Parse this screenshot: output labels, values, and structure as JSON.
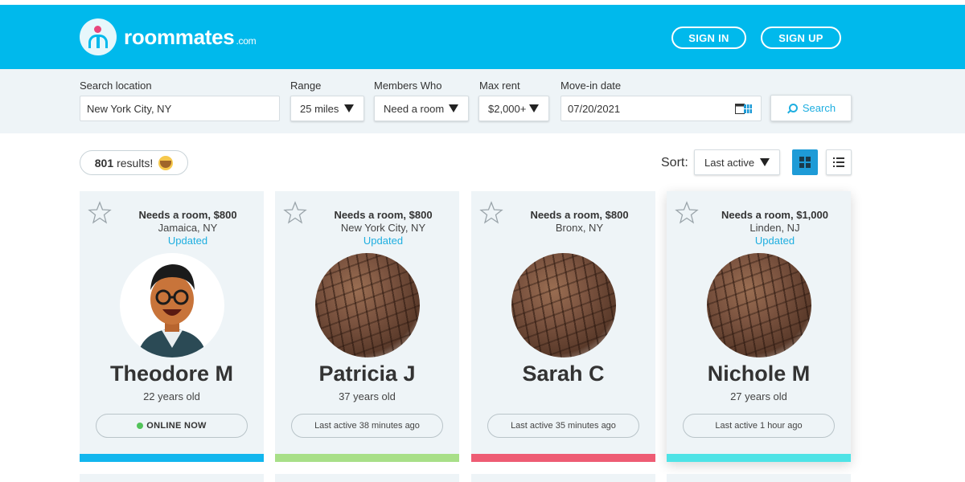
{
  "header": {
    "brand": "roommates",
    "brand_suffix": ".com",
    "sign_in": "SIGN IN",
    "sign_up": "SIGN UP"
  },
  "filters": {
    "location": {
      "label": "Search location",
      "value": "New York City, NY"
    },
    "range": {
      "label": "Range",
      "value": "25 miles"
    },
    "members": {
      "label": "Members Who",
      "value": "Need a room"
    },
    "max_rent": {
      "label": "Max rent",
      "value": "$2,000+"
    },
    "move_in": {
      "label": "Move-in date",
      "value": "07/20/2021"
    },
    "search_label": "Search"
  },
  "results": {
    "count": "801",
    "suffix": "results!"
  },
  "sort": {
    "label": "Sort:",
    "value": "Last active"
  },
  "colors": {
    "brand": "#00b9ec",
    "accent_blue": "#1e9bd7",
    "online": "#52c35a"
  },
  "cards": [
    {
      "title": "Needs a room, $800",
      "location": "Jamaica, NY",
      "updated": "Updated",
      "name": "Theodore M",
      "age": "22 years old",
      "status": "ONLINE NOW",
      "online": true,
      "bar_color": "#12b6ee",
      "avatar": "cartoon-man-with-glasses"
    },
    {
      "title": "Needs a room, $800",
      "location": "New York City, NY",
      "updated": "Updated",
      "name": "Patricia J",
      "age": "37 years old",
      "status": "Last active 38 minutes ago",
      "online": false,
      "bar_color": "#a8df88",
      "avatar": "bark-texture"
    },
    {
      "title": "Needs a room, $800",
      "location": "Bronx, NY",
      "updated": "",
      "name": "Sarah C",
      "age": "",
      "status": "Last active 35 minutes ago",
      "online": false,
      "bar_color": "#ee5c74",
      "avatar": "bark-texture"
    },
    {
      "title": "Needs a room, $1,000",
      "location": "Linden, NJ",
      "updated": "Updated",
      "name": "Nichole M",
      "age": "27 years old",
      "status": "Last active 1 hour ago",
      "online": false,
      "bar_color": "#4ee3e6",
      "avatar": "bark-texture"
    }
  ]
}
